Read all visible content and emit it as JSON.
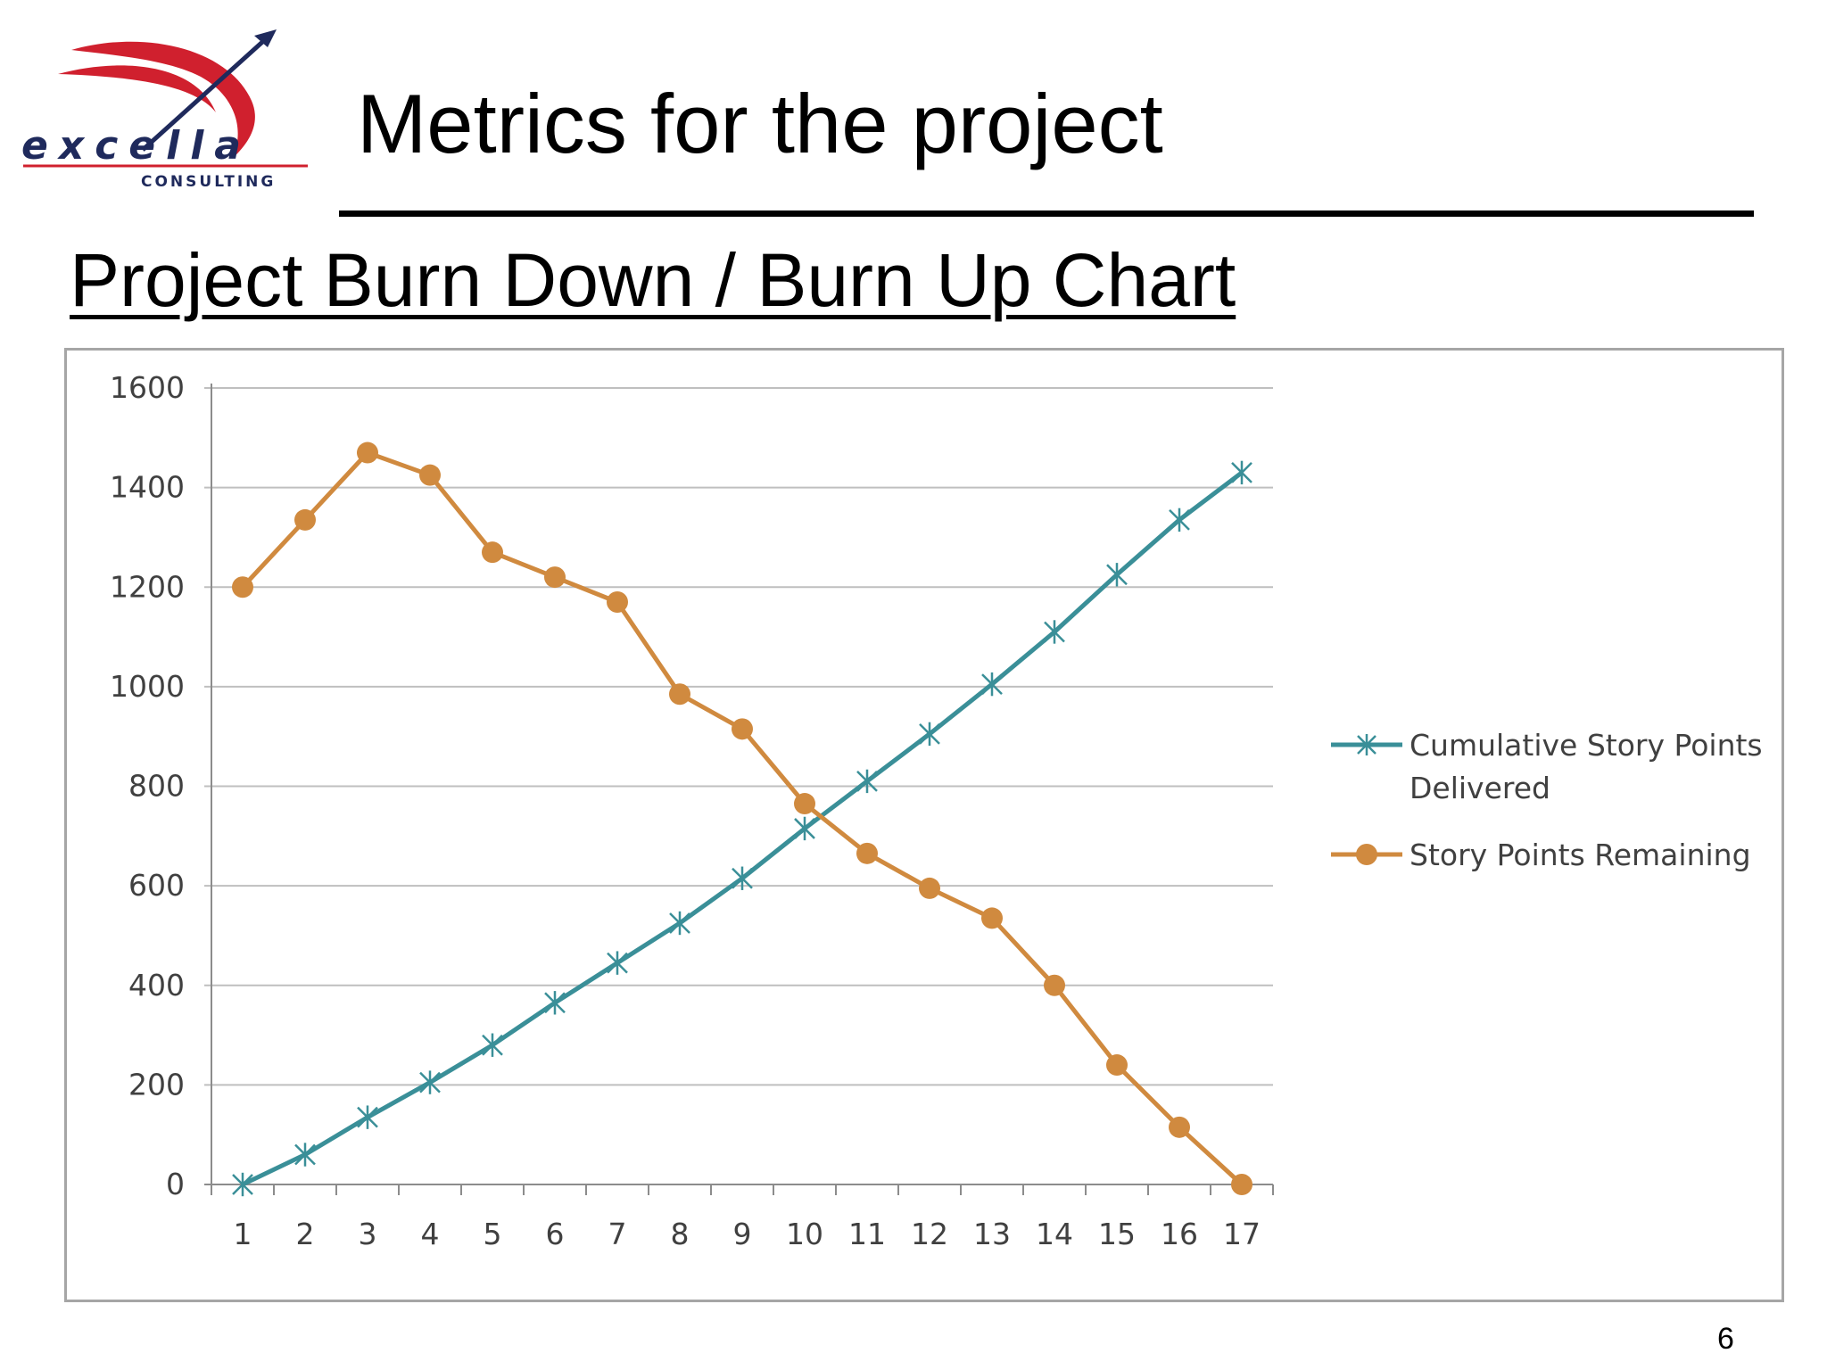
{
  "logo": {
    "brand": "excella",
    "tagline": "CONSULTING"
  },
  "slide": {
    "title": "Metrics for the project",
    "heading": "Project Burn Down / Burn Up Chart",
    "page_number": "6"
  },
  "colors": {
    "series_delivered": "#3a8f98",
    "series_remaining": "#d08a3f",
    "gridline": "#bfbfbf",
    "axis": "#8c8c8c",
    "logo_red": "#d0202e",
    "logo_navy": "#1f2a5c"
  },
  "chart_data": {
    "type": "line",
    "title": "",
    "xlabel": "",
    "ylabel": "",
    "x": [
      "1",
      "2",
      "3",
      "4",
      "5",
      "6",
      "7",
      "8",
      "9",
      "10",
      "11",
      "12",
      "13",
      "14",
      "15",
      "16",
      "17"
    ],
    "ylim": [
      0,
      1600
    ],
    "yticks": [
      "0",
      "200",
      "400",
      "600",
      "800",
      "1000",
      "1200",
      "1400",
      "1600"
    ],
    "grid": "horizontal",
    "legend_position": "right",
    "series": [
      {
        "name": "Cumulative Story Points Delivered",
        "name_lines": [
          "Cumulative Story Points",
          "Delivered"
        ],
        "marker": "asterisk",
        "values": [
          0,
          60,
          135,
          205,
          280,
          365,
          445,
          525,
          615,
          715,
          810,
          905,
          1005,
          1110,
          1225,
          1335,
          1430
        ]
      },
      {
        "name": "Story Points Remaining",
        "name_lines": [
          "Story Points Remaining"
        ],
        "marker": "circle",
        "values": [
          1200,
          1335,
          1470,
          1425,
          1270,
          1220,
          1170,
          985,
          915,
          765,
          665,
          595,
          535,
          400,
          240,
          115,
          0
        ]
      }
    ]
  }
}
